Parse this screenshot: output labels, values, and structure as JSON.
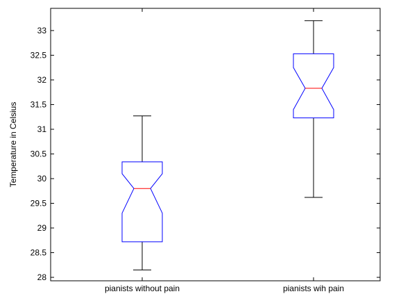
{
  "chart_data": {
    "type": "boxplot",
    "title": "",
    "xlabel": "",
    "ylabel": "Temperature in Celsius",
    "ylim": [
      27.93,
      33.45
    ],
    "yticks": [
      28,
      28.5,
      29,
      29.5,
      30,
      30.5,
      31,
      31.5,
      32,
      32.5,
      33
    ],
    "ytick_labels": [
      "28",
      "28.5",
      "29",
      "29.5",
      "30",
      "30.5",
      "31",
      "31.5",
      "32",
      "32.5",
      "33"
    ],
    "categories": [
      "pianists without pain",
      "pianists wih pain"
    ],
    "boxes": [
      {
        "category": "pianists without pain",
        "whisker_low": 28.15,
        "q1": 28.72,
        "notch_low": 29.3,
        "median": 29.8,
        "notch_high": 30.1,
        "q3": 30.34,
        "whisker_high": 31.27
      },
      {
        "category": "pianists wih pain",
        "whisker_low": 29.62,
        "q1": 31.23,
        "notch_low": 31.4,
        "median": 31.83,
        "notch_high": 32.25,
        "q3": 32.53,
        "whisker_high": 33.2
      }
    ],
    "colors": {
      "box": "#0000ff",
      "median": "#ff0000",
      "whisker": "#000000",
      "axes": "#000000"
    },
    "grid": false
  }
}
